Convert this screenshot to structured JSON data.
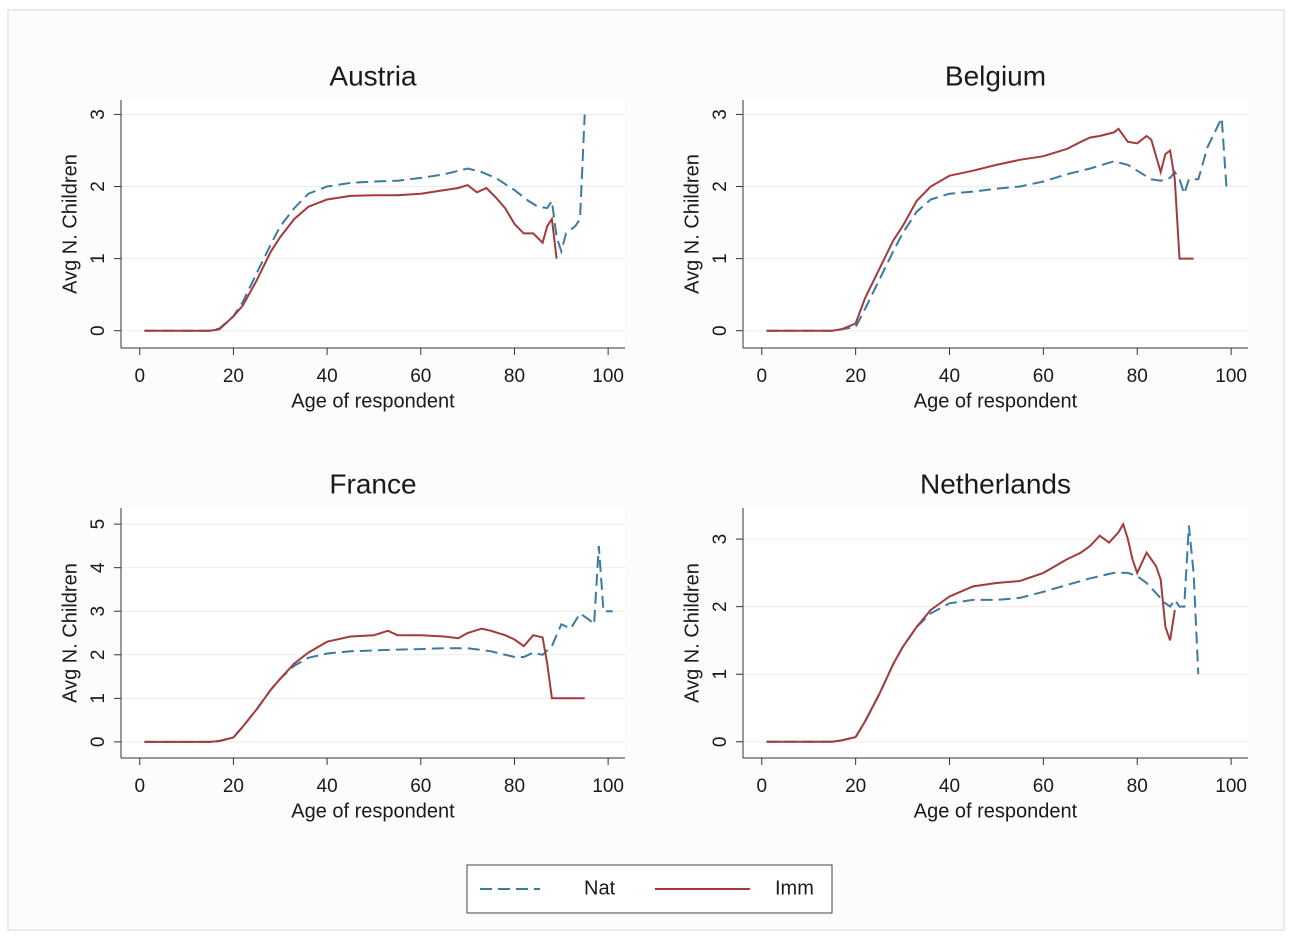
{
  "chart_data": [
    {
      "type": "line",
      "title": "Austria",
      "x_label": "Age of respondent",
      "y_label": "Avg N. Children",
      "xlim": [
        -4,
        103.6
      ],
      "ylim": [
        -0.24,
        3.2
      ],
      "xticks": [
        0,
        20,
        40,
        60,
        80,
        100
      ],
      "yticks": [
        0,
        1,
        2,
        3
      ],
      "grid": true,
      "series": [
        {
          "name": "Nat",
          "color": "#3b7b9f",
          "dashed": true,
          "x": [
            1,
            5,
            10,
            15,
            17,
            20,
            22,
            25,
            28,
            30,
            33,
            36,
            40,
            45,
            50,
            55,
            60,
            65,
            70,
            73,
            76,
            80,
            83,
            85,
            87,
            88,
            89,
            90,
            91,
            93,
            94,
            95
          ],
          "values": [
            0,
            0,
            0,
            0,
            0.03,
            0.2,
            0.4,
            0.8,
            1.2,
            1.45,
            1.7,
            1.9,
            2.0,
            2.05,
            2.07,
            2.08,
            2.12,
            2.17,
            2.25,
            2.2,
            2.12,
            1.95,
            1.8,
            1.72,
            1.7,
            1.8,
            1.3,
            1.1,
            1.35,
            1.45,
            1.55,
            3.0
          ]
        },
        {
          "name": "Imm",
          "color": "#a23b3b",
          "dashed": false,
          "x": [
            1,
            5,
            10,
            15,
            17,
            20,
            22,
            25,
            28,
            30,
            33,
            36,
            40,
            45,
            50,
            55,
            60,
            65,
            68,
            70,
            72,
            74,
            76,
            78,
            80,
            82,
            84,
            86,
            87,
            88,
            89
          ],
          "values": [
            0,
            0,
            0,
            0,
            0.02,
            0.2,
            0.35,
            0.7,
            1.1,
            1.3,
            1.55,
            1.72,
            1.82,
            1.87,
            1.88,
            1.88,
            1.9,
            1.95,
            1.98,
            2.02,
            1.92,
            1.98,
            1.85,
            1.7,
            1.48,
            1.35,
            1.35,
            1.22,
            1.45,
            1.55,
            1.0
          ]
        }
      ]
    },
    {
      "type": "line",
      "title": "Belgium",
      "x_label": "Age of respondent",
      "y_label": "Avg N. Children",
      "xlim": [
        -4,
        103.6
      ],
      "ylim": [
        -0.24,
        3.2
      ],
      "xticks": [
        0,
        20,
        40,
        60,
        80,
        100
      ],
      "yticks": [
        0,
        1,
        2,
        3
      ],
      "grid": true,
      "series": [
        {
          "name": "Nat",
          "color": "#3b7b9f",
          "dashed": true,
          "x": [
            1,
            5,
            10,
            15,
            17,
            20,
            22,
            25,
            28,
            30,
            33,
            36,
            40,
            45,
            50,
            55,
            60,
            65,
            70,
            75,
            78,
            80,
            83,
            85,
            87,
            88,
            89,
            90,
            91,
            93,
            95,
            98,
            99
          ],
          "values": [
            0,
            0,
            0,
            0,
            0.02,
            0.05,
            0.3,
            0.7,
            1.1,
            1.35,
            1.65,
            1.82,
            1.9,
            1.93,
            1.97,
            2.0,
            2.07,
            2.17,
            2.25,
            2.35,
            2.3,
            2.22,
            2.1,
            2.08,
            2.12,
            2.2,
            2.1,
            1.9,
            2.1,
            2.1,
            2.55,
            2.95,
            2.0
          ]
        },
        {
          "name": "Imm",
          "color": "#a23b3b",
          "dashed": false,
          "x": [
            1,
            5,
            10,
            15,
            17,
            20,
            22,
            25,
            28,
            30,
            33,
            36,
            40,
            45,
            50,
            55,
            60,
            65,
            68,
            70,
            72,
            75,
            76,
            78,
            80,
            82,
            83,
            85,
            86,
            87,
            88,
            89,
            92
          ],
          "values": [
            0,
            0,
            0,
            0,
            0.02,
            0.1,
            0.45,
            0.85,
            1.25,
            1.45,
            1.8,
            2.0,
            2.15,
            2.22,
            2.3,
            2.37,
            2.42,
            2.52,
            2.62,
            2.68,
            2.7,
            2.75,
            2.8,
            2.62,
            2.6,
            2.7,
            2.65,
            2.2,
            2.45,
            2.5,
            2.1,
            1.0,
            1.0
          ]
        }
      ]
    },
    {
      "type": "line",
      "title": "France",
      "x_label": "Age of respondent",
      "y_label": "Avg N. Children",
      "xlim": [
        -4,
        103.6
      ],
      "ylim": [
        -0.37,
        5.37
      ],
      "xticks": [
        0,
        20,
        40,
        60,
        80,
        100
      ],
      "yticks": [
        0,
        1,
        2,
        3,
        4,
        5
      ],
      "grid": true,
      "series": [
        {
          "name": "Nat",
          "color": "#3b7b9f",
          "dashed": true,
          "x": [
            1,
            5,
            10,
            15,
            17,
            20,
            22,
            25,
            28,
            30,
            33,
            36,
            40,
            45,
            50,
            55,
            60,
            65,
            70,
            75,
            80,
            82,
            84,
            86,
            88,
            90,
            92,
            94,
            96,
            97,
            98,
            99,
            101
          ],
          "values": [
            0,
            0,
            0,
            0,
            0.02,
            0.1,
            0.35,
            0.75,
            1.2,
            1.45,
            1.75,
            1.93,
            2.03,
            2.08,
            2.1,
            2.12,
            2.13,
            2.15,
            2.15,
            2.08,
            1.95,
            1.95,
            2.05,
            2.0,
            2.2,
            2.7,
            2.6,
            2.95,
            2.8,
            2.7,
            4.5,
            3.0,
            3.0
          ]
        },
        {
          "name": "Imm",
          "color": "#a23b3b",
          "dashed": false,
          "x": [
            1,
            5,
            10,
            15,
            17,
            20,
            22,
            25,
            28,
            30,
            33,
            36,
            40,
            45,
            50,
            53,
            55,
            60,
            65,
            68,
            70,
            73,
            75,
            78,
            80,
            82,
            84,
            86,
            87,
            88,
            95
          ],
          "values": [
            0,
            0,
            0,
            0,
            0.02,
            0.1,
            0.35,
            0.75,
            1.2,
            1.45,
            1.8,
            2.05,
            2.3,
            2.42,
            2.45,
            2.55,
            2.45,
            2.45,
            2.42,
            2.38,
            2.5,
            2.6,
            2.55,
            2.45,
            2.35,
            2.2,
            2.45,
            2.4,
            1.8,
            1.0,
            1.0
          ]
        }
      ]
    },
    {
      "type": "line",
      "title": "Netherlands",
      "x_label": "Age of respondent",
      "y_label": "Avg N. Children",
      "xlim": [
        -4,
        103.6
      ],
      "ylim": [
        -0.24,
        3.46
      ],
      "xticks": [
        0,
        20,
        40,
        60,
        80,
        100
      ],
      "yticks": [
        0,
        1,
        2,
        3
      ],
      "grid": true,
      "series": [
        {
          "name": "Nat",
          "color": "#3b7b9f",
          "dashed": true,
          "x": [
            1,
            5,
            10,
            15,
            17,
            20,
            22,
            25,
            28,
            30,
            33,
            36,
            40,
            45,
            50,
            55,
            60,
            65,
            70,
            75,
            78,
            80,
            82,
            84,
            86,
            87,
            88,
            89,
            90,
            91,
            92,
            93
          ],
          "values": [
            0,
            0,
            0,
            0,
            0.02,
            0.07,
            0.3,
            0.7,
            1.15,
            1.4,
            1.7,
            1.9,
            2.05,
            2.1,
            2.1,
            2.13,
            2.22,
            2.32,
            2.42,
            2.5,
            2.5,
            2.45,
            2.35,
            2.2,
            2.05,
            2.0,
            2.1,
            2.0,
            2.0,
            3.2,
            2.5,
            1.0
          ]
        },
        {
          "name": "Imm",
          "color": "#a23b3b",
          "dashed": false,
          "x": [
            1,
            5,
            10,
            15,
            17,
            20,
            22,
            25,
            28,
            30,
            33,
            36,
            40,
            45,
            50,
            55,
            60,
            65,
            68,
            70,
            72,
            74,
            76,
            77,
            78,
            79,
            80,
            82,
            84,
            85,
            86,
            87,
            88
          ],
          "values": [
            0,
            0,
            0,
            0,
            0.02,
            0.07,
            0.3,
            0.7,
            1.15,
            1.4,
            1.7,
            1.95,
            2.15,
            2.3,
            2.35,
            2.38,
            2.5,
            2.7,
            2.8,
            2.9,
            3.05,
            2.95,
            3.1,
            3.22,
            3.0,
            2.7,
            2.5,
            2.8,
            2.6,
            2.4,
            1.7,
            1.5,
            1.95
          ]
        }
      ]
    }
  ]
}
